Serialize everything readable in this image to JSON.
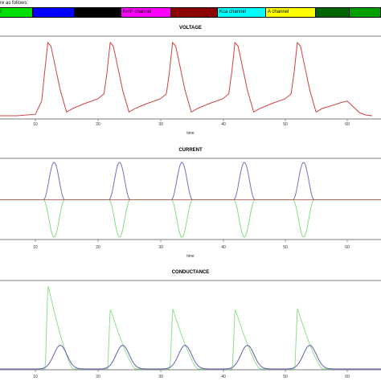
{
  "caption": "re as follows:",
  "legend": [
    {
      "label": "el",
      "color": "#00e000",
      "text_color": "#000000"
    },
    {
      "label": "",
      "color": "#0000ff",
      "text_color": "#000000"
    },
    {
      "label": "",
      "color": "#000000",
      "text_color": "#333333"
    },
    {
      "label": "KmF channel",
      "color": "#ff00ff",
      "text_color": "#000000"
    },
    {
      "label": "",
      "color": "#8b0000",
      "text_color": "#000000"
    },
    {
      "label": "Kca channel",
      "color": "#00ffff",
      "text_color": "#000000"
    },
    {
      "label": "A channel",
      "color": "#ffff00",
      "text_color": "#000000"
    },
    {
      "label": "",
      "color": "#006400",
      "text_color": "#000000"
    },
    {
      "label": "",
      "color": "#00a000",
      "text_color": "#000000"
    }
  ],
  "chart_data": [
    {
      "type": "line",
      "title": "VOLTAGE",
      "xlabel": "time",
      "xlim": [
        0,
        64
      ],
      "x_ticks": [
        "10",
        "20",
        "30",
        "40",
        "50",
        "60"
      ],
      "spike_times": [
        12,
        22,
        32,
        42,
        52
      ],
      "series": [
        {
          "color": "#d04040",
          "x": [
            0,
            7,
            10,
            11,
            11.5,
            12,
            12.5,
            13,
            14,
            15,
            16,
            18,
            20,
            21,
            21.5,
            22,
            22.5,
            23,
            24,
            25,
            26,
            28,
            30,
            31,
            31.5,
            32,
            32.5,
            33,
            34,
            35,
            36,
            38,
            40,
            41,
            41.5,
            42,
            42.5,
            43,
            44,
            45,
            46,
            48,
            50,
            51,
            51.5,
            52,
            52.5,
            53,
            54,
            55,
            56,
            58,
            59,
            60,
            61,
            62,
            63,
            64
          ],
          "y": [
            0,
            0,
            0.02,
            0.2,
            0.6,
            1,
            0.95,
            0.75,
            0.35,
            0.05,
            0.1,
            0.17,
            0.23,
            0.3,
            0.6,
            1,
            0.95,
            0.75,
            0.35,
            0.05,
            0.1,
            0.17,
            0.23,
            0.3,
            0.6,
            1,
            0.95,
            0.75,
            0.35,
            0.05,
            0.1,
            0.17,
            0.23,
            0.3,
            0.6,
            1,
            0.95,
            0.75,
            0.35,
            0.05,
            0.1,
            0.17,
            0.23,
            0.3,
            0.6,
            1,
            0.95,
            0.75,
            0.35,
            0.05,
            0.1,
            0.15,
            0.18,
            0.2,
            0.12,
            0.04,
            0.01,
            0
          ]
        }
      ]
    },
    {
      "type": "line",
      "title": "CURRENT",
      "xlabel": "time",
      "xlim": [
        0,
        64
      ],
      "x_ticks": [
        "10",
        "20",
        "30",
        "40",
        "50",
        "60"
      ],
      "spike_times": [
        13,
        23.5,
        33.5,
        43.5,
        53
      ],
      "series": [
        {
          "color": "#7070c0",
          "peak": 1,
          "width": 3
        },
        {
          "color": "#80e080",
          "peak": -1,
          "width": 3
        },
        {
          "color": "#b04040",
          "peak": 0,
          "width": 3
        }
      ]
    },
    {
      "type": "line",
      "title": "CONDUCTANCE",
      "xlabel": "time",
      "xlim": [
        0,
        64
      ],
      "x_ticks": [
        "10",
        "20",
        "30",
        "40",
        "50",
        "60"
      ],
      "spike_times": [
        12,
        22,
        32,
        42,
        52
      ],
      "series": [
        {
          "color": "#90e090",
          "first_peak": 1,
          "peak": 0.72
        },
        {
          "color": "#6060b0",
          "first_peak": 0.28,
          "peak": 0.28
        }
      ]
    }
  ]
}
